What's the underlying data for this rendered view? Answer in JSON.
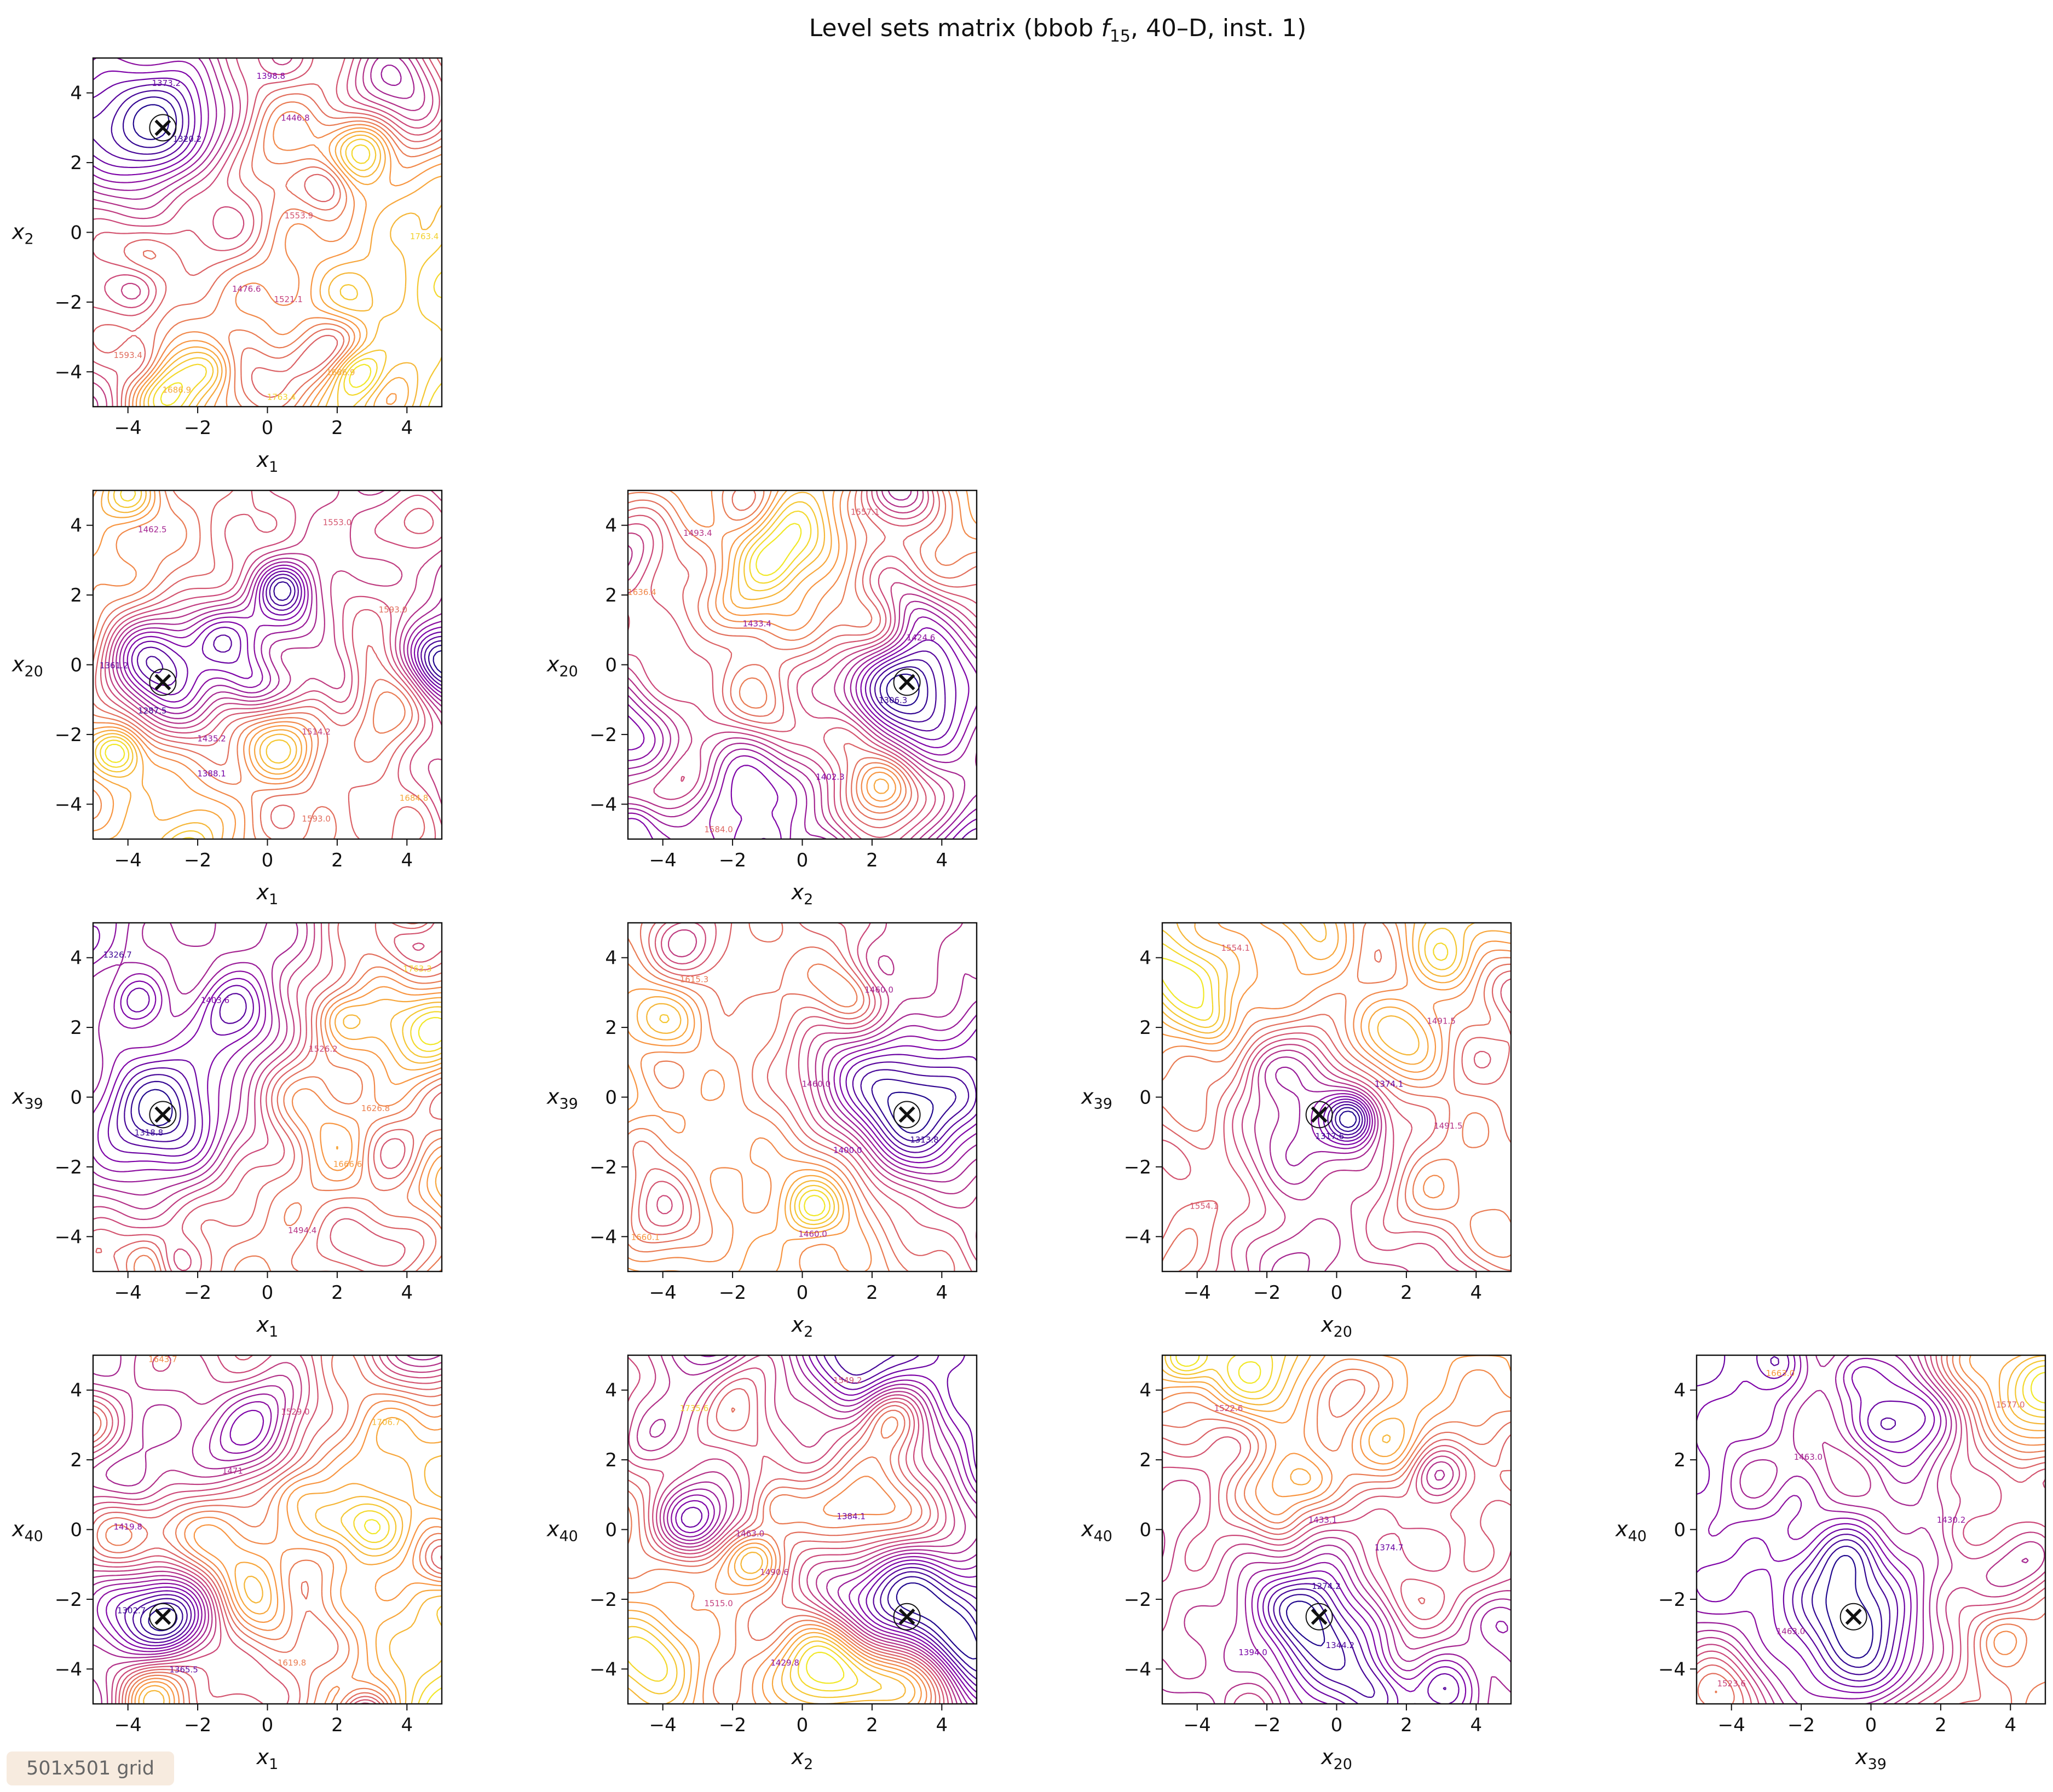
{
  "chart_data": {
    "type": "contour",
    "title": "Level sets matrix (bbob f15, 40–D, inst. 1)",
    "title_parts": {
      "pre": "Level sets matrix (bbob ",
      "f": "f",
      "sub": "15",
      "post": ", 40–D, inst. 1)"
    },
    "colormap": [
      "#0d0887",
      "#7e03a8",
      "#cc4778",
      "#f89540",
      "#f0f921"
    ],
    "xlim": [
      -5,
      5
    ],
    "ylim": [
      -5,
      5
    ],
    "ticks": [
      -4,
      -2,
      0,
      2,
      4
    ],
    "tick_labels": [
      "−4",
      "−2",
      "0",
      "2",
      "4"
    ],
    "marker": "x",
    "panels": [
      {
        "row": 0,
        "col": 0,
        "x_var": "1",
        "y_var": "2",
        "min": [
          -3.0,
          3.0
        ],
        "contour_labels": [
          [
            "1373.2",
            -2.9,
            4.2
          ],
          [
            "1320.2",
            -2.3,
            2.6
          ],
          [
            "1398.8",
            0.1,
            4.4
          ],
          [
            "1446.8",
            0.8,
            3.2
          ],
          [
            "1553.9",
            0.9,
            0.4
          ],
          [
            "1476.6",
            -0.6,
            -1.7
          ],
          [
            "1521.1",
            0.6,
            -2.0
          ],
          [
            "1686.9",
            -2.6,
            -4.6
          ],
          [
            "1763.4",
            0.4,
            -4.8
          ],
          [
            "1763.4",
            4.5,
            -0.2
          ],
          [
            "1593.4",
            -4.0,
            -3.6
          ],
          [
            "1686.9",
            2.1,
            -4.1
          ]
        ]
      },
      {
        "row": 1,
        "col": 0,
        "x_var": "1",
        "y_var": "20",
        "min": [
          -3.0,
          -0.5
        ],
        "contour_labels": [
          [
            "1287.5",
            -3.3,
            -1.4
          ],
          [
            "1361.2",
            -4.4,
            -0.1
          ],
          [
            "1462.5",
            -3.3,
            3.8
          ],
          [
            "1553.0",
            2.0,
            4.0
          ],
          [
            "1593.0",
            3.6,
            1.5
          ],
          [
            "1435.2",
            -1.6,
            -2.2
          ],
          [
            "1388.1",
            -1.6,
            -3.2
          ],
          [
            "1593.0",
            1.4,
            -4.5
          ],
          [
            "1684.8",
            4.2,
            -3.9
          ],
          [
            "1514.2",
            1.4,
            -2.0
          ]
        ]
      },
      {
        "row": 1,
        "col": 1,
        "x_var": "2",
        "y_var": "20",
        "min": [
          3.0,
          -0.5
        ],
        "contour_labels": [
          [
            "1306.3",
            2.6,
            -1.1
          ],
          [
            "1433.4",
            -1.3,
            1.1
          ],
          [
            "1493.4",
            -3.0,
            3.7
          ],
          [
            "1584.0",
            -2.4,
            -4.8
          ],
          [
            "1402.3",
            0.8,
            -3.3
          ],
          [
            "1424.6",
            3.4,
            0.7
          ],
          [
            "1557.1",
            1.8,
            4.3
          ],
          [
            "1636.4",
            -4.6,
            2.0
          ]
        ]
      },
      {
        "row": 2,
        "col": 0,
        "x_var": "1",
        "y_var": "39",
        "min": [
          -3.0,
          -0.5
        ],
        "contour_labels": [
          [
            "1318.8",
            -3.4,
            -1.1
          ],
          [
            "1326.7",
            -4.3,
            4.0
          ],
          [
            "1526.2",
            1.6,
            1.3
          ],
          [
            "1666.6",
            2.3,
            -2.0
          ],
          [
            "1494.4",
            1.0,
            -3.9
          ],
          [
            "1403.6",
            -1.5,
            2.7
          ],
          [
            "1626.8",
            3.1,
            -0.4
          ],
          [
            "1763.3",
            4.3,
            3.6
          ]
        ]
      },
      {
        "row": 2,
        "col": 1,
        "x_var": "2",
        "y_var": "39",
        "min": [
          3.0,
          -0.5
        ],
        "contour_labels": [
          [
            "1400.0",
            1.3,
            -1.6
          ],
          [
            "1615.3",
            -3.1,
            3.3
          ],
          [
            "1460.0",
            0.3,
            -4.0
          ],
          [
            "1313.8",
            3.5,
            -1.3
          ],
          [
            "1660.1",
            -4.5,
            -4.1
          ],
          [
            "1460.0",
            0.4,
            0.3
          ],
          [
            "1460.0",
            2.2,
            3.0
          ]
        ]
      },
      {
        "row": 2,
        "col": 2,
        "x_var": "20",
        "y_var": "39",
        "min": [
          -0.5,
          -0.5
        ],
        "contour_labels": [
          [
            "1317.6",
            -0.2,
            -1.2
          ],
          [
            "1491.5",
            3.2,
            -0.9
          ],
          [
            "1554.1",
            -2.9,
            4.2
          ],
          [
            "1491.5",
            3.0,
            2.1
          ],
          [
            "1374.1",
            1.5,
            0.3
          ],
          [
            "1554.1",
            -3.8,
            -3.2
          ]
        ]
      },
      {
        "row": 3,
        "col": 0,
        "x_var": "1",
        "y_var": "40",
        "min": [
          -3.0,
          -2.5
        ],
        "contour_labels": [
          [
            "1302.7",
            -3.9,
            -2.4
          ],
          [
            "1365.5",
            -2.4,
            -4.1
          ],
          [
            "1471",
            -1.0,
            1.6
          ],
          [
            "1529.0",
            0.8,
            3.3
          ],
          [
            "1706.7",
            3.4,
            3.0
          ],
          [
            "1643.7",
            -3.0,
            4.8
          ],
          [
            "1419.8",
            -4.0,
            0.0
          ],
          [
            "1619.8",
            0.7,
            -3.9
          ]
        ]
      },
      {
        "row": 3,
        "col": 1,
        "x_var": "2",
        "y_var": "40",
        "min": [
          3.0,
          -2.5
        ],
        "contour_labels": [
          [
            "1735.6",
            -3.1,
            3.4
          ],
          [
            "1384.1",
            1.4,
            0.3
          ],
          [
            "1490.6",
            -0.8,
            -1.3
          ],
          [
            "1429.8",
            -0.5,
            -3.9
          ],
          [
            "1515.0",
            -2.4,
            -2.2
          ],
          [
            "1549.2",
            1.3,
            4.2
          ],
          [
            "1463.0",
            -1.5,
            -0.2
          ]
        ]
      },
      {
        "row": 3,
        "col": 2,
        "x_var": "20",
        "y_var": "40",
        "min": [
          -0.5,
          -2.5
        ],
        "contour_labels": [
          [
            "1274.2",
            -0.3,
            -1.7
          ],
          [
            "1374.7",
            1.5,
            -0.6
          ],
          [
            "1344.2",
            0.1,
            -3.4
          ],
          [
            "1522.6",
            -3.1,
            3.4
          ],
          [
            "1394.0",
            -2.4,
            -3.6
          ],
          [
            "1433.1",
            -0.4,
            0.2
          ]
        ]
      },
      {
        "row": 3,
        "col": 3,
        "x_var": "39",
        "y_var": "40",
        "min": [
          -0.5,
          -2.5
        ],
        "contour_labels": [
          [
            "1577.0",
            4.0,
            3.5
          ],
          [
            "1463.0",
            -1.8,
            2.0
          ],
          [
            "1430.2",
            2.3,
            0.2
          ],
          [
            "1463.0",
            -2.3,
            -3.0
          ],
          [
            "1663.0",
            -2.6,
            4.4
          ],
          [
            "1523.6",
            -4.0,
            -4.5
          ]
        ]
      }
    ]
  },
  "footer": {
    "grid_label": "501x501 grid"
  }
}
